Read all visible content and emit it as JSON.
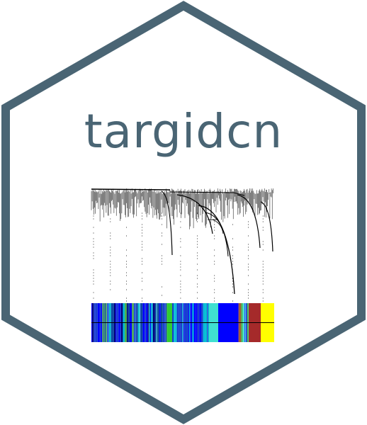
{
  "logo": {
    "package_name": "targidcn",
    "border_color": "#4a6574",
    "background_color": "#ffffff",
    "text_color": "#4a6574"
  },
  "dendrogram_graphic": {
    "description_icon": "wgcna-dendrogram-icon",
    "line_color": "#000000",
    "module_color_bar": [
      "#1a3fd0",
      "#00bcd4",
      "#2f5fd8",
      "#4caf50",
      "#0000ff",
      "#40e0d0",
      "#00a86b",
      "#0000ff",
      "#0000ff",
      "#40e0d0",
      "#a0522d",
      "#a52a2a",
      "#ffff00"
    ]
  }
}
